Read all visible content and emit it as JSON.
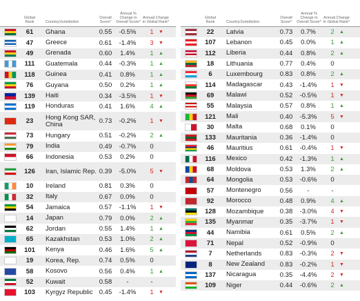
{
  "header": {
    "rank": "Global Rank",
    "country": "Country/Jurisdiction",
    "score": "Overall Score*",
    "change": "Annual % Change in Overall Score*",
    "rank_change": "Annual Change in Global Rank*"
  },
  "tables": [
    {
      "rows": [
        {
          "rank": 61,
          "country": "Ghana",
          "score": "0.55",
          "change": "-0.5%",
          "rank_change": "1",
          "arrow": "▼"
        },
        {
          "rank": 47,
          "country": "Greece",
          "score": "0.61",
          "change": "-1.4%",
          "rank_change": "3",
          "arrow": "▼"
        },
        {
          "rank": 49,
          "country": "Grenada",
          "score": "0.60",
          "change": "1.4%",
          "rank_change": "1",
          "arrow": "▲"
        },
        {
          "rank": 111,
          "country": "Guatemala",
          "score": "0.44",
          "change": "-0.3%",
          "rank_change": "1",
          "arrow": "▲"
        },
        {
          "rank": 118,
          "country": "Guinea",
          "score": "0.41",
          "change": "0.8%",
          "rank_change": "1",
          "arrow": "▲"
        },
        {
          "rank": 76,
          "country": "Guyana",
          "score": "0.50",
          "change": "0.2%",
          "rank_change": "1",
          "arrow": "▲"
        },
        {
          "rank": 139,
          "country": "Haiti",
          "score": "0.34",
          "change": "-3.5%",
          "rank_change": "1",
          "arrow": "▼"
        },
        {
          "rank": 119,
          "country": "Honduras",
          "score": "0.41",
          "change": "1.6%",
          "rank_change": "4",
          "arrow": "▲"
        },
        {
          "rank": 23,
          "country": "Hong Kong SAR, China",
          "score": "0.73",
          "change": "-0.2%",
          "rank_change": "1",
          "arrow": "▼"
        },
        {
          "rank": 73,
          "country": "Hungary",
          "score": "0.51",
          "change": "-0.2%",
          "rank_change": "2",
          "arrow": "▲"
        },
        {
          "rank": 79,
          "country": "India",
          "score": "0.49",
          "change": "-0.7%",
          "rank_change": "0"
        },
        {
          "rank": 66,
          "country": "Indonesia",
          "score": "0.53",
          "change": "0.2%",
          "rank_change": "0"
        },
        {
          "rank": 126,
          "country": "Iran, Islamic Rep.",
          "score": "0.39",
          "change": "-5.0%",
          "rank_change": "5",
          "arrow": "▼"
        },
        {
          "rank": 10,
          "country": "Ireland",
          "score": "0.81",
          "change": "0.3%",
          "rank_change": "0"
        },
        {
          "rank": 32,
          "country": "Italy",
          "score": "0.67",
          "change": "0.0%",
          "rank_change": "0"
        },
        {
          "rank": 54,
          "country": "Jamaica",
          "score": "0.57",
          "change": "-1.1%",
          "rank_change": "1",
          "arrow": "▼"
        },
        {
          "rank": 14,
          "country": "Japan",
          "score": "0.79",
          "change": "0.0%",
          "rank_change": "2",
          "arrow": "▲"
        },
        {
          "rank": 62,
          "country": "Jordan",
          "score": "0.55",
          "change": "1.4%",
          "rank_change": "1",
          "arrow": "▲"
        },
        {
          "rank": 65,
          "country": "Kazakhstan",
          "score": "0.53",
          "change": "1.0%",
          "rank_change": "2",
          "arrow": "▲"
        },
        {
          "rank": 101,
          "country": "Kenya",
          "score": "0.46",
          "change": "1.6%",
          "rank_change": "5",
          "arrow": "▲"
        },
        {
          "rank": 19,
          "country": "Korea, Rep.",
          "score": "0.74",
          "change": "0.5%",
          "rank_change": "0"
        },
        {
          "rank": 58,
          "country": "Kosovo",
          "score": "0.56",
          "change": "0.4%",
          "rank_change": "1",
          "arrow": "▲"
        },
        {
          "rank": 52,
          "country": "Kuwait",
          "score": "0.58",
          "change": "-",
          "rank_change": "-"
        },
        {
          "rank": 103,
          "country": "Kyrgyz Republic",
          "score": "0.45",
          "change": "-1.4%",
          "rank_change": "1",
          "arrow": "▼"
        }
      ]
    },
    {
      "rows": [
        {
          "rank": 22,
          "country": "Latvia",
          "score": "0.73",
          "change": "0.7%",
          "rank_change": "2",
          "arrow": "▲"
        },
        {
          "rank": 107,
          "country": "Lebanon",
          "score": "0.45",
          "change": "0.0%",
          "rank_change": "1",
          "arrow": "▲"
        },
        {
          "rank": 112,
          "country": "Liberia",
          "score": "0.44",
          "change": "0.8%",
          "rank_change": "2",
          "arrow": "▲"
        },
        {
          "rank": 18,
          "country": "Lithuania",
          "score": "0.77",
          "change": "0.4%",
          "rank_change": "0"
        },
        {
          "rank": 6,
          "country": "Luxembourg",
          "score": "0.83",
          "change": "0.8%",
          "rank_change": "2",
          "arrow": "▲"
        },
        {
          "rank": 114,
          "country": "Madagascar",
          "score": "0.43",
          "change": "-1.4%",
          "rank_change": "1",
          "arrow": "▼"
        },
        {
          "rank": 69,
          "country": "Malawi",
          "score": "0.52",
          "change": "-0.5%",
          "rank_change": "1",
          "arrow": "▼"
        },
        {
          "rank": 55,
          "country": "Malaysia",
          "score": "0.57",
          "change": "0.8%",
          "rank_change": "1",
          "arrow": "▲"
        },
        {
          "rank": 121,
          "country": "Mali",
          "score": "0.40",
          "change": "-5.3%",
          "rank_change": "5",
          "arrow": "▼"
        },
        {
          "rank": 30,
          "country": "Malta",
          "score": "0.68",
          "change": "0.1%",
          "rank_change": "0"
        },
        {
          "rank": 133,
          "country": "Mauritania",
          "score": "0.36",
          "change": "-1.4%",
          "rank_change": "0"
        },
        {
          "rank": 46,
          "country": "Mauritius",
          "score": "0.61",
          "change": "-0.4%",
          "rank_change": "1",
          "arrow": "▼"
        },
        {
          "rank": 116,
          "country": "Mexico",
          "score": "0.42",
          "change": "-1.3%",
          "rank_change": "1",
          "arrow": "▲"
        },
        {
          "rank": 68,
          "country": "Moldova",
          "score": "0.53",
          "change": "1.3%",
          "rank_change": "2",
          "arrow": "▲"
        },
        {
          "rank": 64,
          "country": "Mongolia",
          "score": "0.53",
          "change": "-0.6%",
          "rank_change": "0"
        },
        {
          "rank": 57,
          "country": "Montenegro",
          "score": "0.56",
          "change": "-",
          "rank_change": "-"
        },
        {
          "rank": 92,
          "country": "Morocco",
          "score": "0.48",
          "change": "0.9%",
          "rank_change": "4",
          "arrow": "▲"
        },
        {
          "rank": 128,
          "country": "Mozambique",
          "score": "0.38",
          "change": "-3.0%",
          "rank_change": "4",
          "arrow": "▼"
        },
        {
          "rank": 135,
          "country": "Myanmar",
          "score": "0.35",
          "change": "-3.7%",
          "rank_change": "1",
          "arrow": "▼"
        },
        {
          "rank": 44,
          "country": "Namibia",
          "score": "0.61",
          "change": "0.5%",
          "rank_change": "2",
          "arrow": "▲"
        },
        {
          "rank": 71,
          "country": "Nepal",
          "score": "0.52",
          "change": "-0.9%",
          "rank_change": "0"
        },
        {
          "rank": 7,
          "country": "Netherlands",
          "score": "0.83",
          "change": "-0.3%",
          "rank_change": "2",
          "arrow": "▼"
        },
        {
          "rank": 8,
          "country": "New Zealand",
          "score": "0.83",
          "change": "-0.2%",
          "rank_change": "1",
          "arrow": "▼"
        },
        {
          "rank": 137,
          "country": "Nicaragua",
          "score": "0.35",
          "change": "-4.4%",
          "rank_change": "2",
          "arrow": "▼"
        },
        {
          "rank": 109,
          "country": "Niger",
          "score": "0.44",
          "change": "-0.6%",
          "rank_change": "2",
          "arrow": "▲"
        }
      ]
    }
  ]
}
